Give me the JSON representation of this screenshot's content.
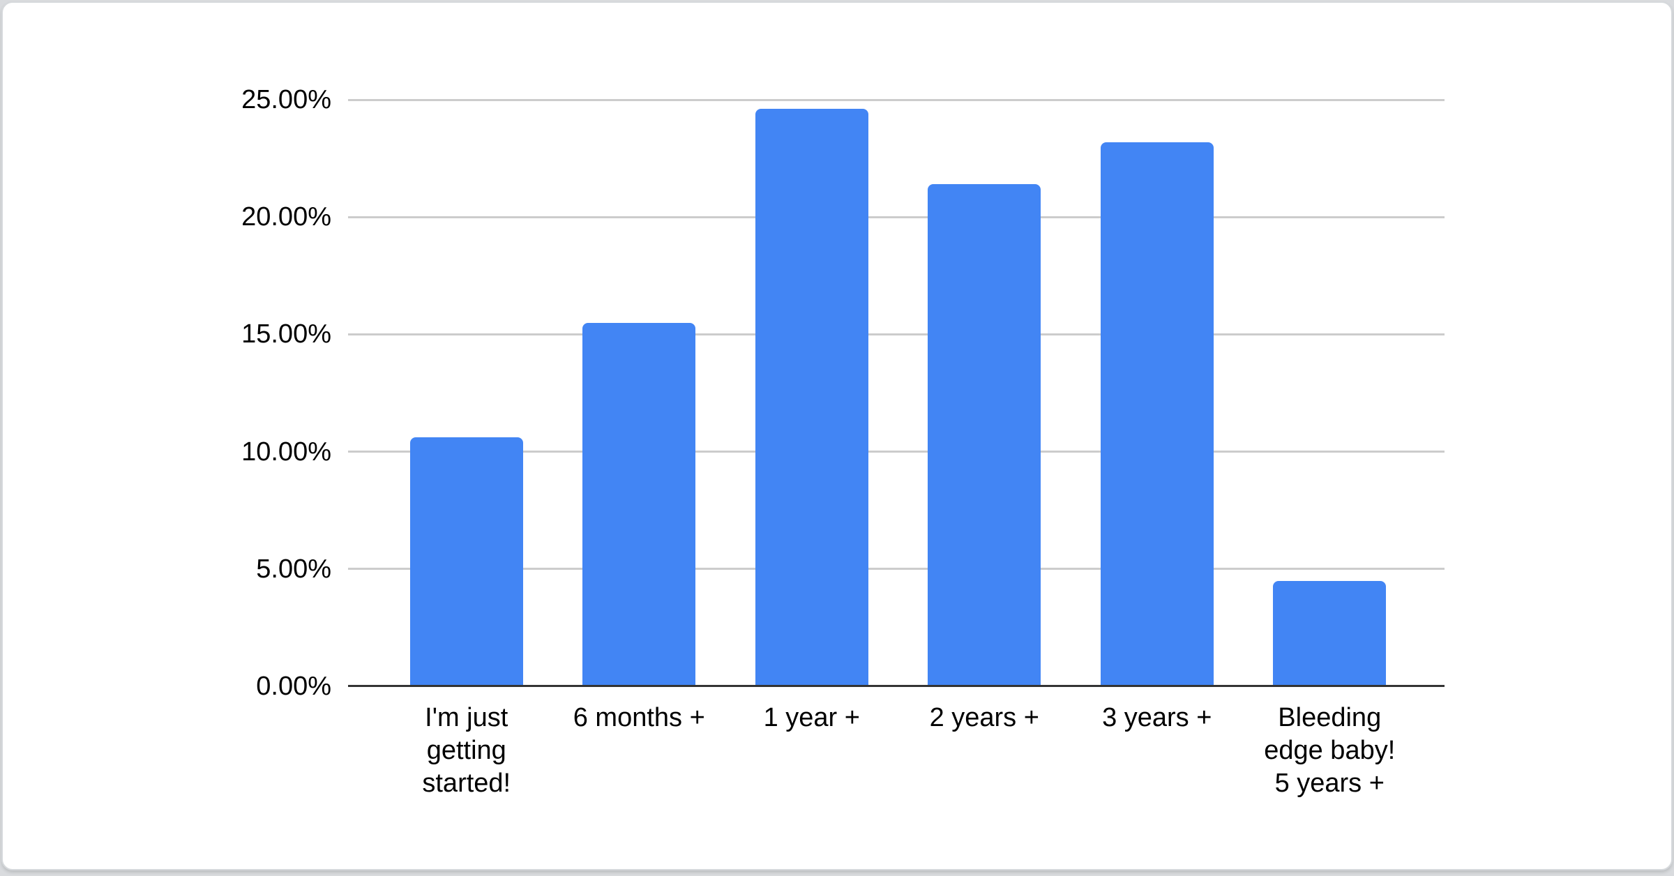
{
  "chart_data": {
    "type": "bar",
    "categories": [
      "I'm just\ngetting\nstarted!",
      "6 months +",
      "1 year +",
      "2 years +",
      "3 years +",
      "Bleeding\nedge baby!\n5 years +"
    ],
    "values": [
      10.6,
      15.5,
      24.6,
      21.4,
      23.2,
      4.5
    ],
    "value_unit": "percent",
    "y_axis": {
      "min": 0,
      "max": 25,
      "tick_step": 5,
      "tick_labels": [
        "0.00%",
        "5.00%",
        "10.00%",
        "15.00%",
        "20.00%",
        "25.00%"
      ]
    },
    "grid": true,
    "legend_position": "none",
    "bar_color": "#4285f4"
  },
  "colors": {
    "bar": "#4285f4",
    "gridline": "#cccccc",
    "axis_line": "#333333",
    "label_text": "#000000",
    "card_background": "#ffffff",
    "card_border": "#d6d9dc",
    "page_background": "#d9dbde"
  }
}
